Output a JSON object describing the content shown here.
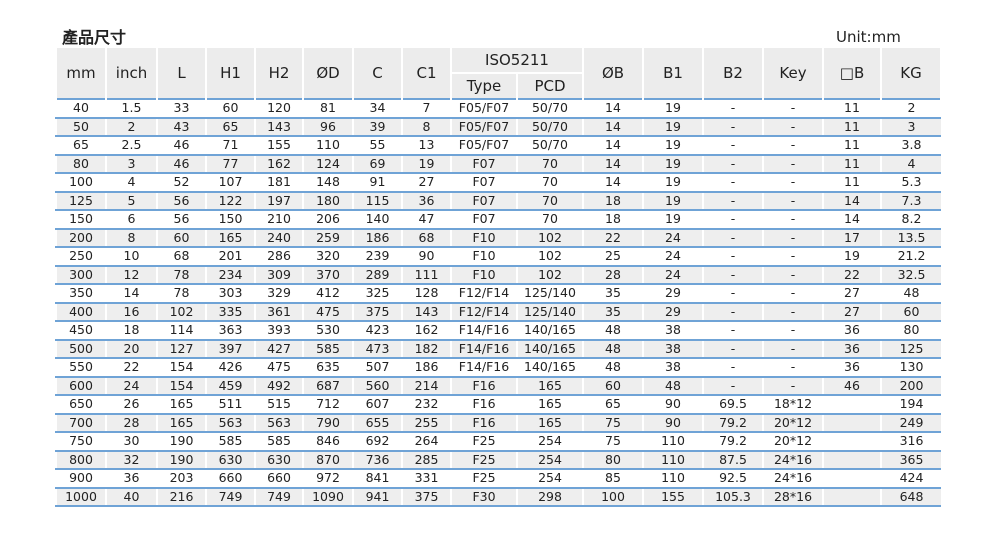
{
  "title": "產品尺寸",
  "unit": "Unit:mm",
  "headers": {
    "mm": "mm",
    "inch": "inch",
    "L": "L",
    "H1": "H1",
    "H2": "H2",
    "OD": "ØD",
    "C": "C",
    "C1": "C1",
    "iso": "ISO5211",
    "type": "Type",
    "pcd": "PCD",
    "OB": "ØB",
    "B1": "B1",
    "B2": "B2",
    "Key": "Key",
    "SB": "□B",
    "KG": "KG"
  },
  "rows": [
    [
      "40",
      "1.5",
      "33",
      "60",
      "120",
      "81",
      "34",
      "7",
      "F05/F07",
      "50/70",
      "14",
      "19",
      "-",
      "-",
      "11",
      "2"
    ],
    [
      "50",
      "2",
      "43",
      "65",
      "143",
      "96",
      "39",
      "8",
      "F05/F07",
      "50/70",
      "14",
      "19",
      "-",
      "-",
      "11",
      "3"
    ],
    [
      "65",
      "2.5",
      "46",
      "71",
      "155",
      "110",
      "55",
      "13",
      "F05/F07",
      "50/70",
      "14",
      "19",
      "-",
      "-",
      "11",
      "3.8"
    ],
    [
      "80",
      "3",
      "46",
      "77",
      "162",
      "124",
      "69",
      "19",
      "F07",
      "70",
      "14",
      "19",
      "-",
      "-",
      "11",
      "4"
    ],
    [
      "100",
      "4",
      "52",
      "107",
      "181",
      "148",
      "91",
      "27",
      "F07",
      "70",
      "14",
      "19",
      "-",
      "-",
      "11",
      "5.3"
    ],
    [
      "125",
      "5",
      "56",
      "122",
      "197",
      "180",
      "115",
      "36",
      "F07",
      "70",
      "18",
      "19",
      "-",
      "-",
      "14",
      "7.3"
    ],
    [
      "150",
      "6",
      "56",
      "150",
      "210",
      "206",
      "140",
      "47",
      "F07",
      "70",
      "18",
      "19",
      "-",
      "-",
      "14",
      "8.2"
    ],
    [
      "200",
      "8",
      "60",
      "165",
      "240",
      "259",
      "186",
      "68",
      "F10",
      "102",
      "22",
      "24",
      "-",
      "-",
      "17",
      "13.5"
    ],
    [
      "250",
      "10",
      "68",
      "201",
      "286",
      "320",
      "239",
      "90",
      "F10",
      "102",
      "25",
      "24",
      "-",
      "-",
      "19",
      "21.2"
    ],
    [
      "300",
      "12",
      "78",
      "234",
      "309",
      "370",
      "289",
      "111",
      "F10",
      "102",
      "28",
      "24",
      "-",
      "-",
      "22",
      "32.5"
    ],
    [
      "350",
      "14",
      "78",
      "303",
      "329",
      "412",
      "325",
      "128",
      "F12/F14",
      "125/140",
      "35",
      "29",
      "-",
      "-",
      "27",
      "48"
    ],
    [
      "400",
      "16",
      "102",
      "335",
      "361",
      "475",
      "375",
      "143",
      "F12/F14",
      "125/140",
      "35",
      "29",
      "-",
      "-",
      "27",
      "60"
    ],
    [
      "450",
      "18",
      "114",
      "363",
      "393",
      "530",
      "423",
      "162",
      "F14/F16",
      "140/165",
      "48",
      "38",
      "-",
      "-",
      "36",
      "80"
    ],
    [
      "500",
      "20",
      "127",
      "397",
      "427",
      "585",
      "473",
      "182",
      "F14/F16",
      "140/165",
      "48",
      "38",
      "-",
      "-",
      "36",
      "125"
    ],
    [
      "550",
      "22",
      "154",
      "426",
      "475",
      "635",
      "507",
      "186",
      "F14/F16",
      "140/165",
      "48",
      "38",
      "-",
      "-",
      "36",
      "130"
    ],
    [
      "600",
      "24",
      "154",
      "459",
      "492",
      "687",
      "560",
      "214",
      "F16",
      "165",
      "60",
      "48",
      "-",
      "-",
      "46",
      "200"
    ],
    [
      "650",
      "26",
      "165",
      "511",
      "515",
      "712",
      "607",
      "232",
      "F16",
      "165",
      "65",
      "90",
      "69.5",
      "18*12",
      "",
      "194"
    ],
    [
      "700",
      "28",
      "165",
      "563",
      "563",
      "790",
      "655",
      "255",
      "F16",
      "165",
      "75",
      "90",
      "79.2",
      "20*12",
      "",
      "249"
    ],
    [
      "750",
      "30",
      "190",
      "585",
      "585",
      "846",
      "692",
      "264",
      "F25",
      "254",
      "75",
      "110",
      "79.2",
      "20*12",
      "",
      "316"
    ],
    [
      "800",
      "32",
      "190",
      "630",
      "630",
      "870",
      "736",
      "285",
      "F25",
      "254",
      "80",
      "110",
      "87.5",
      "24*16",
      "",
      "365"
    ],
    [
      "900",
      "36",
      "203",
      "660",
      "660",
      "972",
      "841",
      "331",
      "F25",
      "254",
      "85",
      "110",
      "92.5",
      "24*16",
      "",
      "424"
    ],
    [
      "1000",
      "40",
      "216",
      "749",
      "749",
      "1090",
      "941",
      "375",
      "F30",
      "298",
      "100",
      "155",
      "105.3",
      "28*16",
      "",
      "648"
    ]
  ]
}
